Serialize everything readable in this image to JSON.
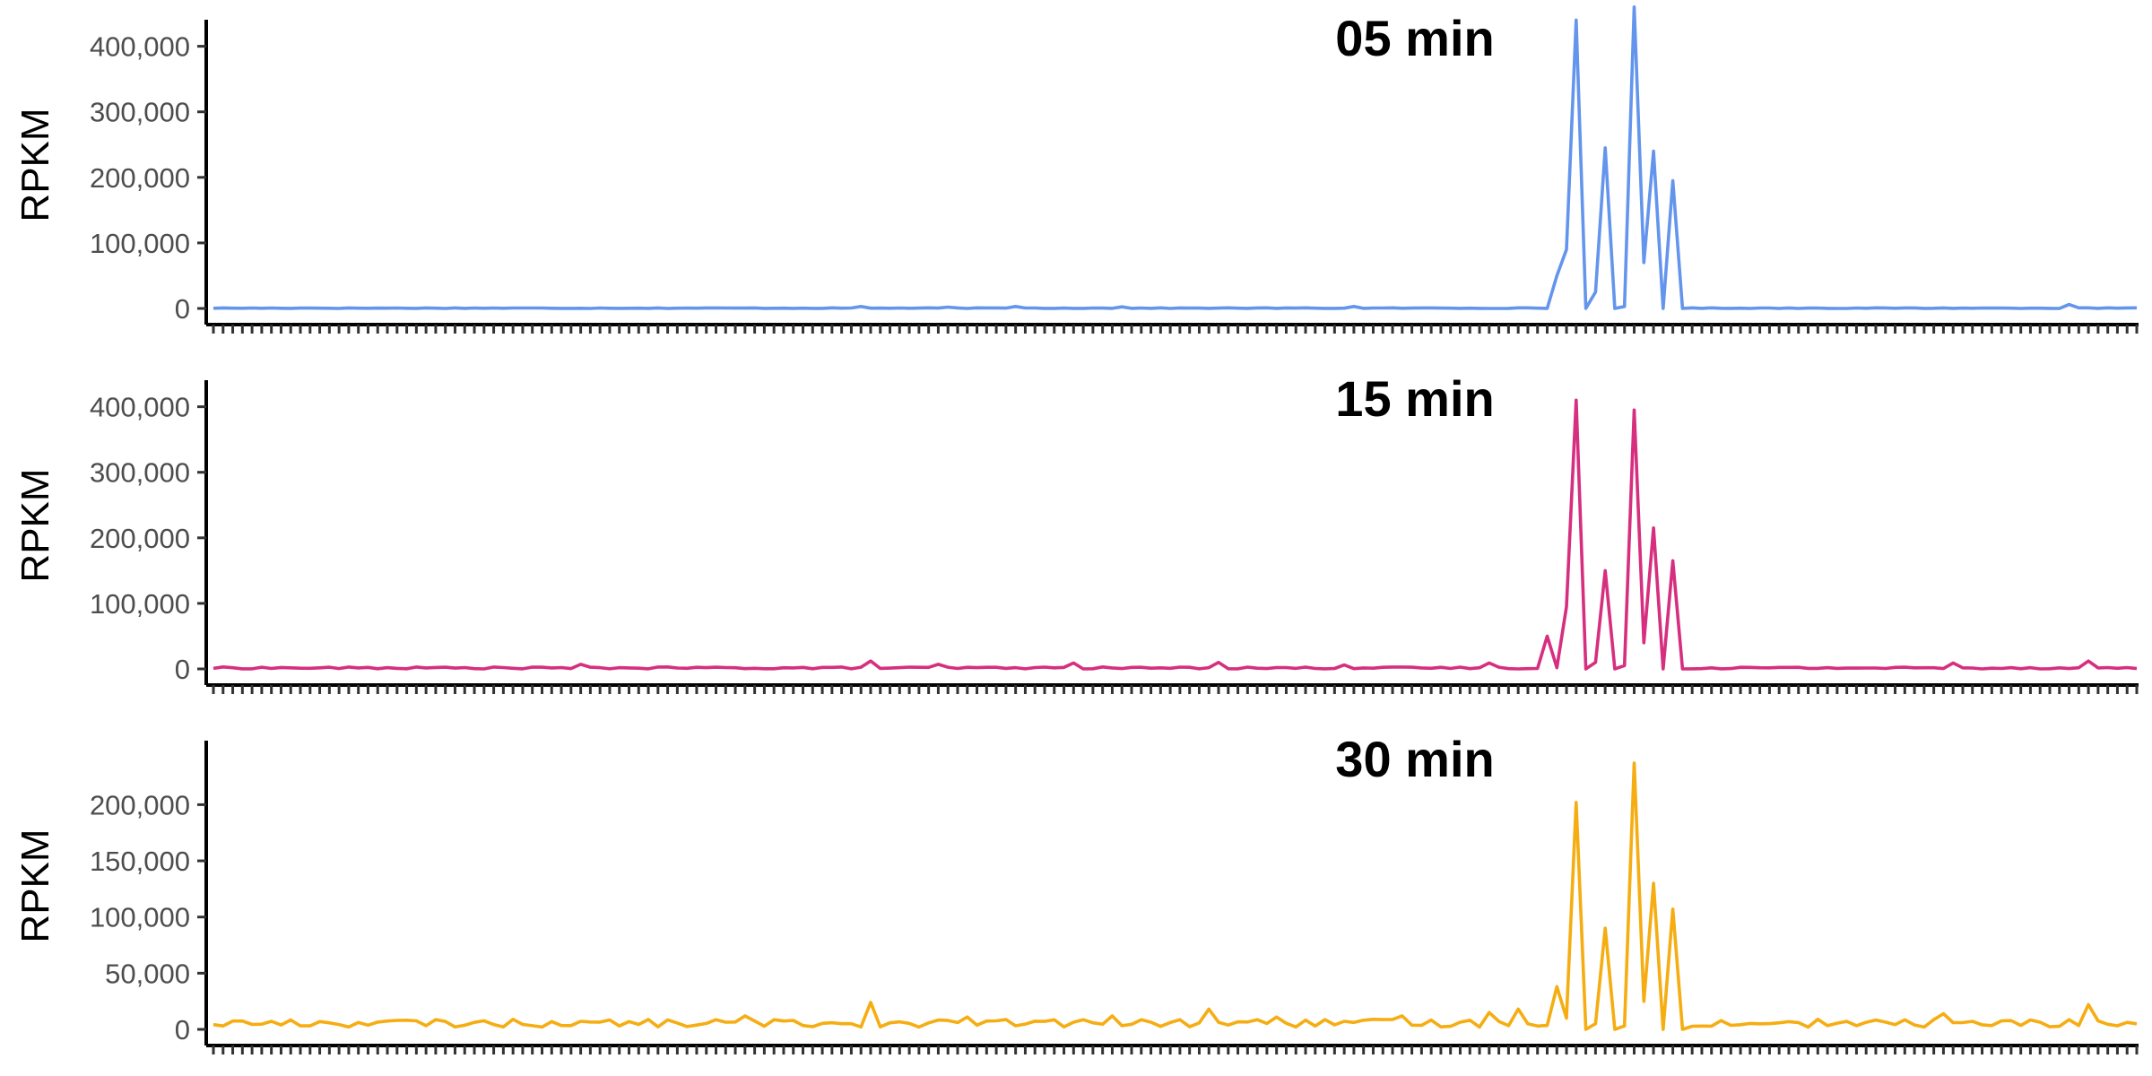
{
  "chart_data": [
    {
      "type": "line",
      "title": "05 min",
      "ylabel": "RPKM",
      "xlabel": "",
      "color": "#6495ed",
      "ylim": [
        0,
        420000
      ],
      "yticks": [
        0,
        100000,
        200000,
        300000,
        400000
      ],
      "ytick_labels": [
        "0",
        "100,000",
        "200,000",
        "300,000",
        "400,000"
      ],
      "n_x": 200,
      "baseline": 0,
      "noise": 1000,
      "bumps": [
        [
          67,
          3000
        ],
        [
          76,
          2000
        ],
        [
          83,
          3000
        ],
        [
          94,
          2500
        ],
        [
          118,
          3000
        ],
        [
          142,
          4000
        ],
        [
          192,
          6000
        ]
      ],
      "peaks": [
        [
          139,
          50000
        ],
        [
          140,
          90000
        ],
        [
          141,
          440000
        ],
        [
          142,
          0
        ],
        [
          143,
          25000
        ],
        [
          144,
          245000
        ],
        [
          145,
          0
        ],
        [
          146,
          3000
        ],
        [
          147,
          460000
        ],
        [
          148,
          70000
        ],
        [
          149,
          240000
        ],
        [
          150,
          0
        ],
        [
          151,
          195000
        ],
        [
          152,
          0
        ]
      ]
    },
    {
      "type": "line",
      "title": "15 min",
      "ylabel": "RPKM",
      "xlabel": "",
      "color": "#d62f7f",
      "ylim": [
        0,
        420000
      ],
      "yticks": [
        0,
        100000,
        200000,
        300000,
        400000
      ],
      "ytick_labels": [
        "0",
        "100,000",
        "200,000",
        "300,000",
        "400,000"
      ],
      "n_x": 200,
      "baseline": 0,
      "noise": 3000,
      "bumps": [
        [
          38,
          7000
        ],
        [
          68,
          12000
        ],
        [
          75,
          7000
        ],
        [
          89,
          9000
        ],
        [
          104,
          10000
        ],
        [
          117,
          6000
        ],
        [
          132,
          9000
        ],
        [
          180,
          9000
        ],
        [
          194,
          12000
        ]
      ],
      "peaks": [
        [
          138,
          50000
        ],
        [
          140,
          95000
        ],
        [
          141,
          410000
        ],
        [
          142,
          0
        ],
        [
          143,
          10000
        ],
        [
          144,
          150000
        ],
        [
          145,
          0
        ],
        [
          146,
          5000
        ],
        [
          147,
          395000
        ],
        [
          148,
          40000
        ],
        [
          149,
          215000
        ],
        [
          150,
          0
        ],
        [
          151,
          165000
        ],
        [
          152,
          0
        ]
      ]
    },
    {
      "type": "line",
      "title": "30 min",
      "ylabel": "RPKM",
      "xlabel": "",
      "color": "#f5ad12",
      "ylim": [
        0,
        245000
      ],
      "yticks": [
        0,
        50000,
        100000,
        150000,
        200000
      ],
      "ytick_labels": [
        "0",
        "50,000",
        "100,000",
        "150,000",
        "200,000"
      ],
      "n_x": 200,
      "baseline": 2000,
      "noise": 7000,
      "bumps": [
        [
          55,
          12000
        ],
        [
          68,
          24000
        ],
        [
          78,
          11000
        ],
        [
          93,
          12000
        ],
        [
          103,
          18000
        ],
        [
          110,
          11000
        ],
        [
          123,
          12000
        ],
        [
          132,
          15000
        ],
        [
          135,
          18000
        ],
        [
          179,
          14000
        ],
        [
          194,
          22000
        ]
      ],
      "peaks": [
        [
          139,
          38000
        ],
        [
          140,
          10000
        ],
        [
          141,
          202000
        ],
        [
          142,
          0
        ],
        [
          143,
          5000
        ],
        [
          144,
          90000
        ],
        [
          145,
          0
        ],
        [
          146,
          3000
        ],
        [
          147,
          237000
        ],
        [
          148,
          25000
        ],
        [
          149,
          130000
        ],
        [
          150,
          0
        ],
        [
          151,
          107000
        ],
        [
          152,
          0
        ]
      ]
    }
  ]
}
